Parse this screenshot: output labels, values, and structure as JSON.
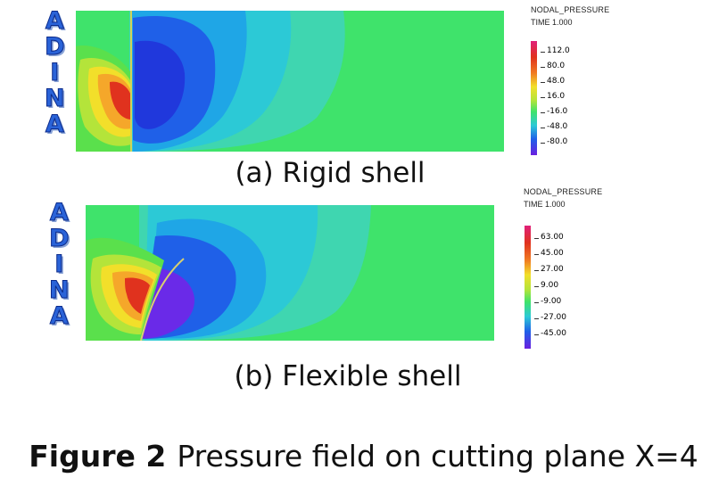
{
  "panel_a": {
    "watermark_letters": [
      "A",
      "D",
      "I",
      "N",
      "A"
    ],
    "legend_title": "NODAL_PRESSURE",
    "legend_time": "TIME 1.000",
    "legend_ticks": [
      "112.0",
      "80.0",
      "48.0",
      "16.0",
      "-16.0",
      "-48.0",
      "-80.0"
    ],
    "caption": "(a) Rigid shell"
  },
  "panel_b": {
    "watermark_letters": [
      "A",
      "D",
      "I",
      "N",
      "A"
    ],
    "legend_title": "NODAL_PRESSURE",
    "legend_time": "TIME 1.000",
    "legend_ticks": [
      "63.00",
      "45.00",
      "27.00",
      "9.00",
      "-9.00",
      "-27.00",
      "-45.00"
    ],
    "caption": "(b) Flexible shell"
  },
  "figure_caption": {
    "label": "Figure 2",
    "text": "Pressure field on cutting plane X=4"
  },
  "colors": {
    "background_green": "#3fe36b",
    "high": "#e0321e",
    "low": "#2040e0",
    "watermark": "#2a63d8"
  }
}
